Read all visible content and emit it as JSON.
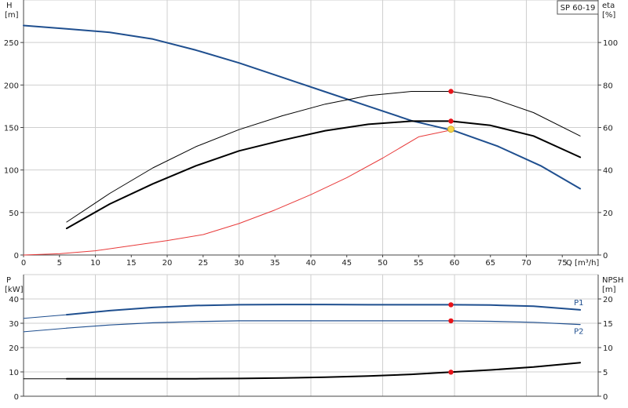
{
  "model_label": "SP 60-19",
  "colors": {
    "head": "#1f4f8f",
    "eta_thick": "#000000",
    "eta_thin": "#000000",
    "system": "#e83a3a",
    "p1": "#1f4f8f",
    "p2": "#1f4f8f",
    "npsh": "#000000",
    "grid": "#cfcfcf",
    "duty_point": "#e8141a",
    "duty_point_yellow": "#f7d64a"
  },
  "chart_data": [
    {
      "id": "top",
      "type": "line",
      "x_axis": {
        "label": "Q [m³/h]",
        "range": [
          0,
          80
        ],
        "ticks": [
          0,
          5,
          10,
          15,
          20,
          25,
          30,
          35,
          40,
          45,
          50,
          55,
          60,
          65,
          70,
          75
        ]
      },
      "y_left": {
        "label_line1": "H",
        "label_line2": "[m]",
        "range": [
          0,
          300
        ],
        "ticks": [
          0,
          50,
          100,
          150,
          200,
          250
        ]
      },
      "y_right": {
        "label_line1": "eta",
        "label_line2": "[%]",
        "range": [
          0,
          120
        ],
        "ticks": [
          0,
          20,
          40,
          60,
          80,
          100
        ]
      },
      "series": [
        {
          "key": "head",
          "axis": "left",
          "width": 2,
          "x": [
            0,
            6,
            12,
            18,
            24,
            30,
            36,
            42,
            48,
            54,
            60,
            66,
            72,
            77.5
          ],
          "y": [
            270,
            266,
            262,
            254,
            241,
            226,
            209,
            192,
            175,
            158,
            146,
            128,
            105,
            78
          ]
        },
        {
          "key": "eta_thin",
          "axis": "right",
          "width": 1,
          "x": [
            6,
            12,
            18,
            24,
            30,
            36,
            42,
            48,
            54,
            59.5,
            65,
            71,
            77.5
          ],
          "y": [
            15.5,
            29,
            41,
            51,
            59,
            65.5,
            71,
            75,
            77,
            77,
            74,
            67,
            56
          ]
        },
        {
          "key": "eta_thick",
          "axis": "right",
          "width": 2,
          "x": [
            6,
            12,
            18,
            24,
            30,
            36,
            42,
            48,
            54,
            59.5,
            65,
            71,
            77.5
          ],
          "y": [
            12.5,
            24,
            33.5,
            42,
            49,
            54,
            58.5,
            61.5,
            63,
            63,
            61,
            56,
            46
          ]
        },
        {
          "key": "system",
          "axis": "left",
          "width": 1,
          "x": [
            0,
            5,
            10,
            15,
            20,
            25,
            30,
            35,
            40,
            45,
            50,
            55,
            59.5
          ],
          "y": [
            0,
            1.5,
            5,
            11,
            17,
            24,
            37,
            53,
            71,
            91,
            114,
            139,
            147
          ]
        }
      ],
      "duty_points": [
        {
          "axis": "left",
          "x": 59.5,
          "y": 148,
          "style": "yellow"
        },
        {
          "axis": "right",
          "x": 59.5,
          "y": 77,
          "style": "red"
        },
        {
          "axis": "right",
          "x": 59.5,
          "y": 63,
          "style": "red"
        }
      ]
    },
    {
      "id": "bottom",
      "type": "line",
      "x_axis": {
        "label": "",
        "range": [
          0,
          80
        ]
      },
      "y_left": {
        "label_line1": "P",
        "label_line2": "[kW]",
        "range": [
          0,
          50
        ],
        "ticks": [
          0,
          10,
          20,
          30,
          40
        ]
      },
      "y_right": {
        "label_line1": "NPSH",
        "label_line2": "[m]",
        "range": [
          0,
          25
        ],
        "ticks": [
          0,
          5,
          10,
          15,
          20
        ]
      },
      "series": [
        {
          "key": "p1",
          "axis": "left",
          "width": 2,
          "name": "P1",
          "x": [
            6,
            12,
            18,
            24,
            30,
            36,
            42,
            48,
            54,
            59.5,
            65,
            71,
            77.5
          ],
          "y": [
            33.5,
            35.2,
            36.5,
            37.3,
            37.6,
            37.7,
            37.7,
            37.6,
            37.6,
            37.6,
            37.5,
            37,
            35.5
          ]
        },
        {
          "key": "p1_ext",
          "axis": "left",
          "width": 1,
          "x": [
            0,
            6
          ],
          "y": [
            32,
            33.5
          ]
        },
        {
          "key": "p2",
          "axis": "left",
          "width": 1.2,
          "name": "P2",
          "x": [
            6,
            12,
            18,
            24,
            30,
            36,
            42,
            48,
            54,
            59.5,
            65,
            71,
            77.5
          ],
          "y": [
            28,
            29.3,
            30.2,
            30.7,
            31,
            31,
            31,
            31,
            31,
            31,
            30.8,
            30.4,
            29.5
          ]
        },
        {
          "key": "p2_ext",
          "axis": "left",
          "width": 1,
          "x": [
            0,
            6
          ],
          "y": [
            26.5,
            28
          ]
        },
        {
          "key": "npsh",
          "axis": "right",
          "width": 2,
          "x": [
            6,
            12,
            18,
            24,
            30,
            36,
            42,
            48,
            54,
            59.5,
            65,
            71,
            77.5
          ],
          "y": [
            3.6,
            3.6,
            3.6,
            3.6,
            3.65,
            3.75,
            3.9,
            4.15,
            4.5,
            4.95,
            5.4,
            6.0,
            6.9
          ]
        },
        {
          "key": "npsh_ext",
          "axis": "right",
          "width": 1,
          "x": [
            0,
            6
          ],
          "y": [
            3.6,
            3.6
          ]
        }
      ],
      "duty_points": [
        {
          "axis": "left",
          "x": 59.5,
          "y": 37.6,
          "style": "red"
        },
        {
          "axis": "left",
          "x": 59.5,
          "y": 31,
          "style": "red"
        },
        {
          "axis": "right",
          "x": 59.5,
          "y": 4.95,
          "style": "red"
        }
      ]
    }
  ]
}
